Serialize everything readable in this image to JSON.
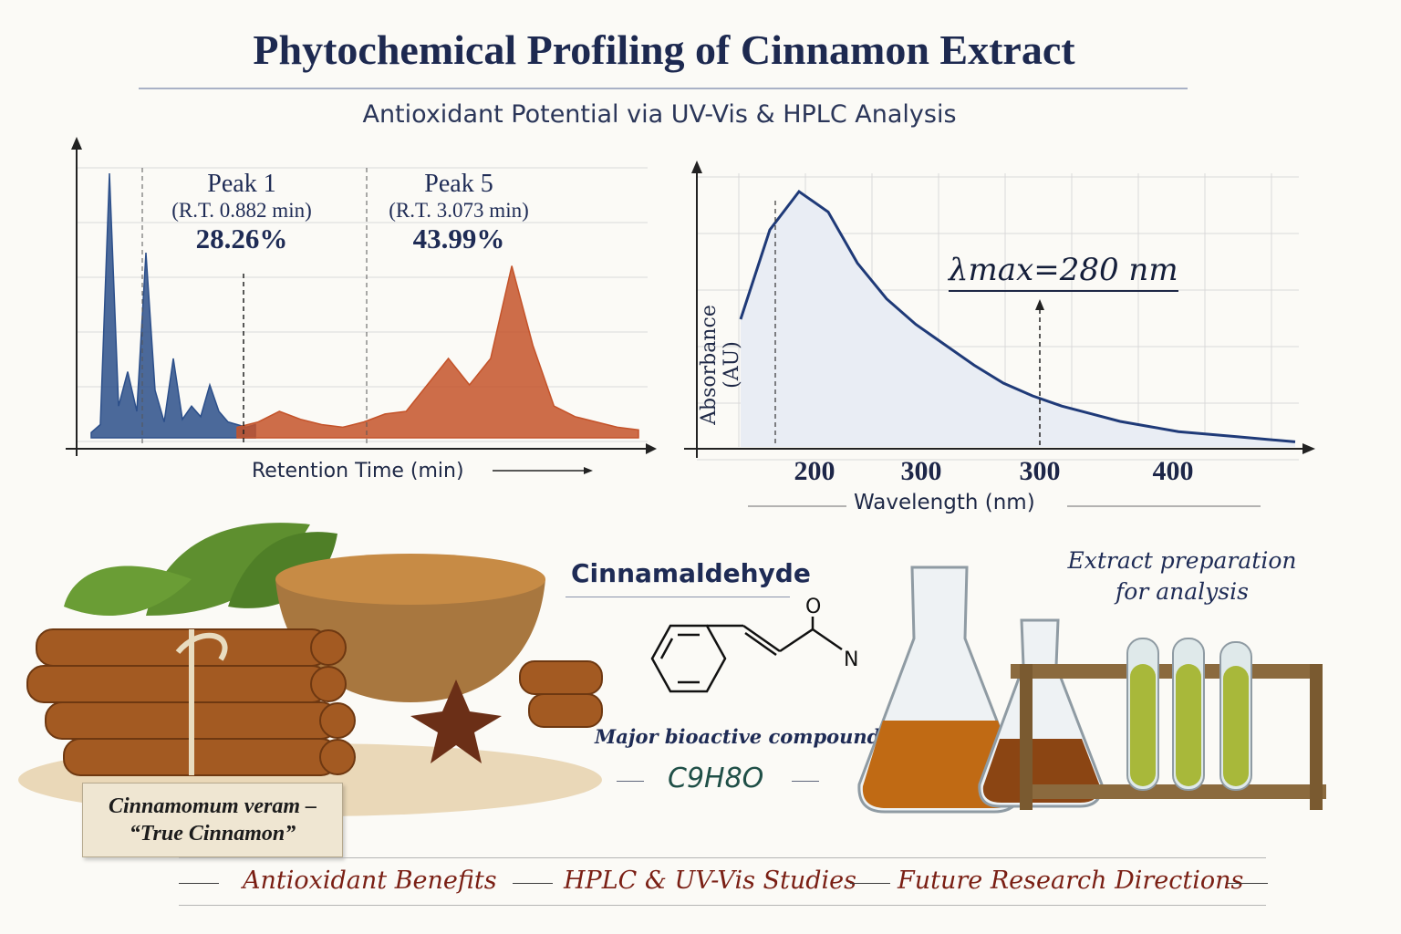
{
  "title": "Phytochemical Profiling of Cinnamon Extract",
  "subtitle": "Antioxidant Potential via UV-Vis & HPLC Analysis",
  "chart_data": [
    {
      "type": "line",
      "chart": "hplc-chromatogram",
      "xlabel": "Retention Time (min)",
      "ylabel": "",
      "grid": true,
      "series": [
        {
          "values": [
            0.02,
            0.05,
            1.0,
            0.12,
            0.25,
            0.1,
            0.7,
            0.18,
            0.06,
            0.3,
            0.07,
            0.12,
            0.08,
            0.2,
            0.1,
            0.06,
            0.05,
            0.04,
            0.05
          ]
        },
        {
          "values": [
            0.04,
            0.06,
            0.1,
            0.07,
            0.05,
            0.04,
            0.06,
            0.09,
            0.1,
            0.2,
            0.3,
            0.2,
            0.3,
            0.65,
            0.35,
            0.12,
            0.08,
            0.06,
            0.04,
            0.03
          ]
        }
      ],
      "annotations": [
        {
          "name": "Peak 1",
          "rt_text": "(R.T. 0.882 min)",
          "percent": "28.26%"
        },
        {
          "name": "Peak 5",
          "rt_text": "(R.T. 3.073 min)",
          "percent": "43.99%"
        }
      ]
    },
    {
      "type": "line",
      "chart": "uv-vis-spectrum",
      "xlabel": "Wavelength (nm)",
      "ylabel": "Absorbance (AU)",
      "x_tick_labels": [
        "200",
        "300",
        "300",
        "400"
      ],
      "grid": true,
      "annotation": {
        "label": "λmax=280 nm"
      },
      "series": [
        {
          "values": [
            0.5,
            0.85,
            1.0,
            0.92,
            0.72,
            0.58,
            0.48,
            0.4,
            0.32,
            0.25,
            0.2,
            0.16,
            0.13,
            0.1,
            0.08,
            0.06,
            0.05,
            0.04,
            0.03,
            0.02
          ]
        }
      ]
    }
  ],
  "compound": {
    "name": "Cinnamaldehyde",
    "note": "Major bioactive compound",
    "formula": "C9H8O",
    "atom_o": "O",
    "atom_n": "N"
  },
  "prep": {
    "line1": "Extract preparation",
    "line2": "for analysis"
  },
  "species": {
    "line1": "Cinnamomum veram –",
    "line2": "“True Cinnamon”"
  },
  "footer": [
    "Antioxidant Benefits",
    "HPLC & UV-Vis Studies",
    "Future Research Directions"
  ],
  "colors": {
    "title": "#1d2950",
    "hplc_early": "#2c4f8a",
    "hplc_late": "#c4532a",
    "uv_line": "#1f3a78",
    "footer_text": "#7a1f14",
    "formula": "#1f4f47"
  }
}
